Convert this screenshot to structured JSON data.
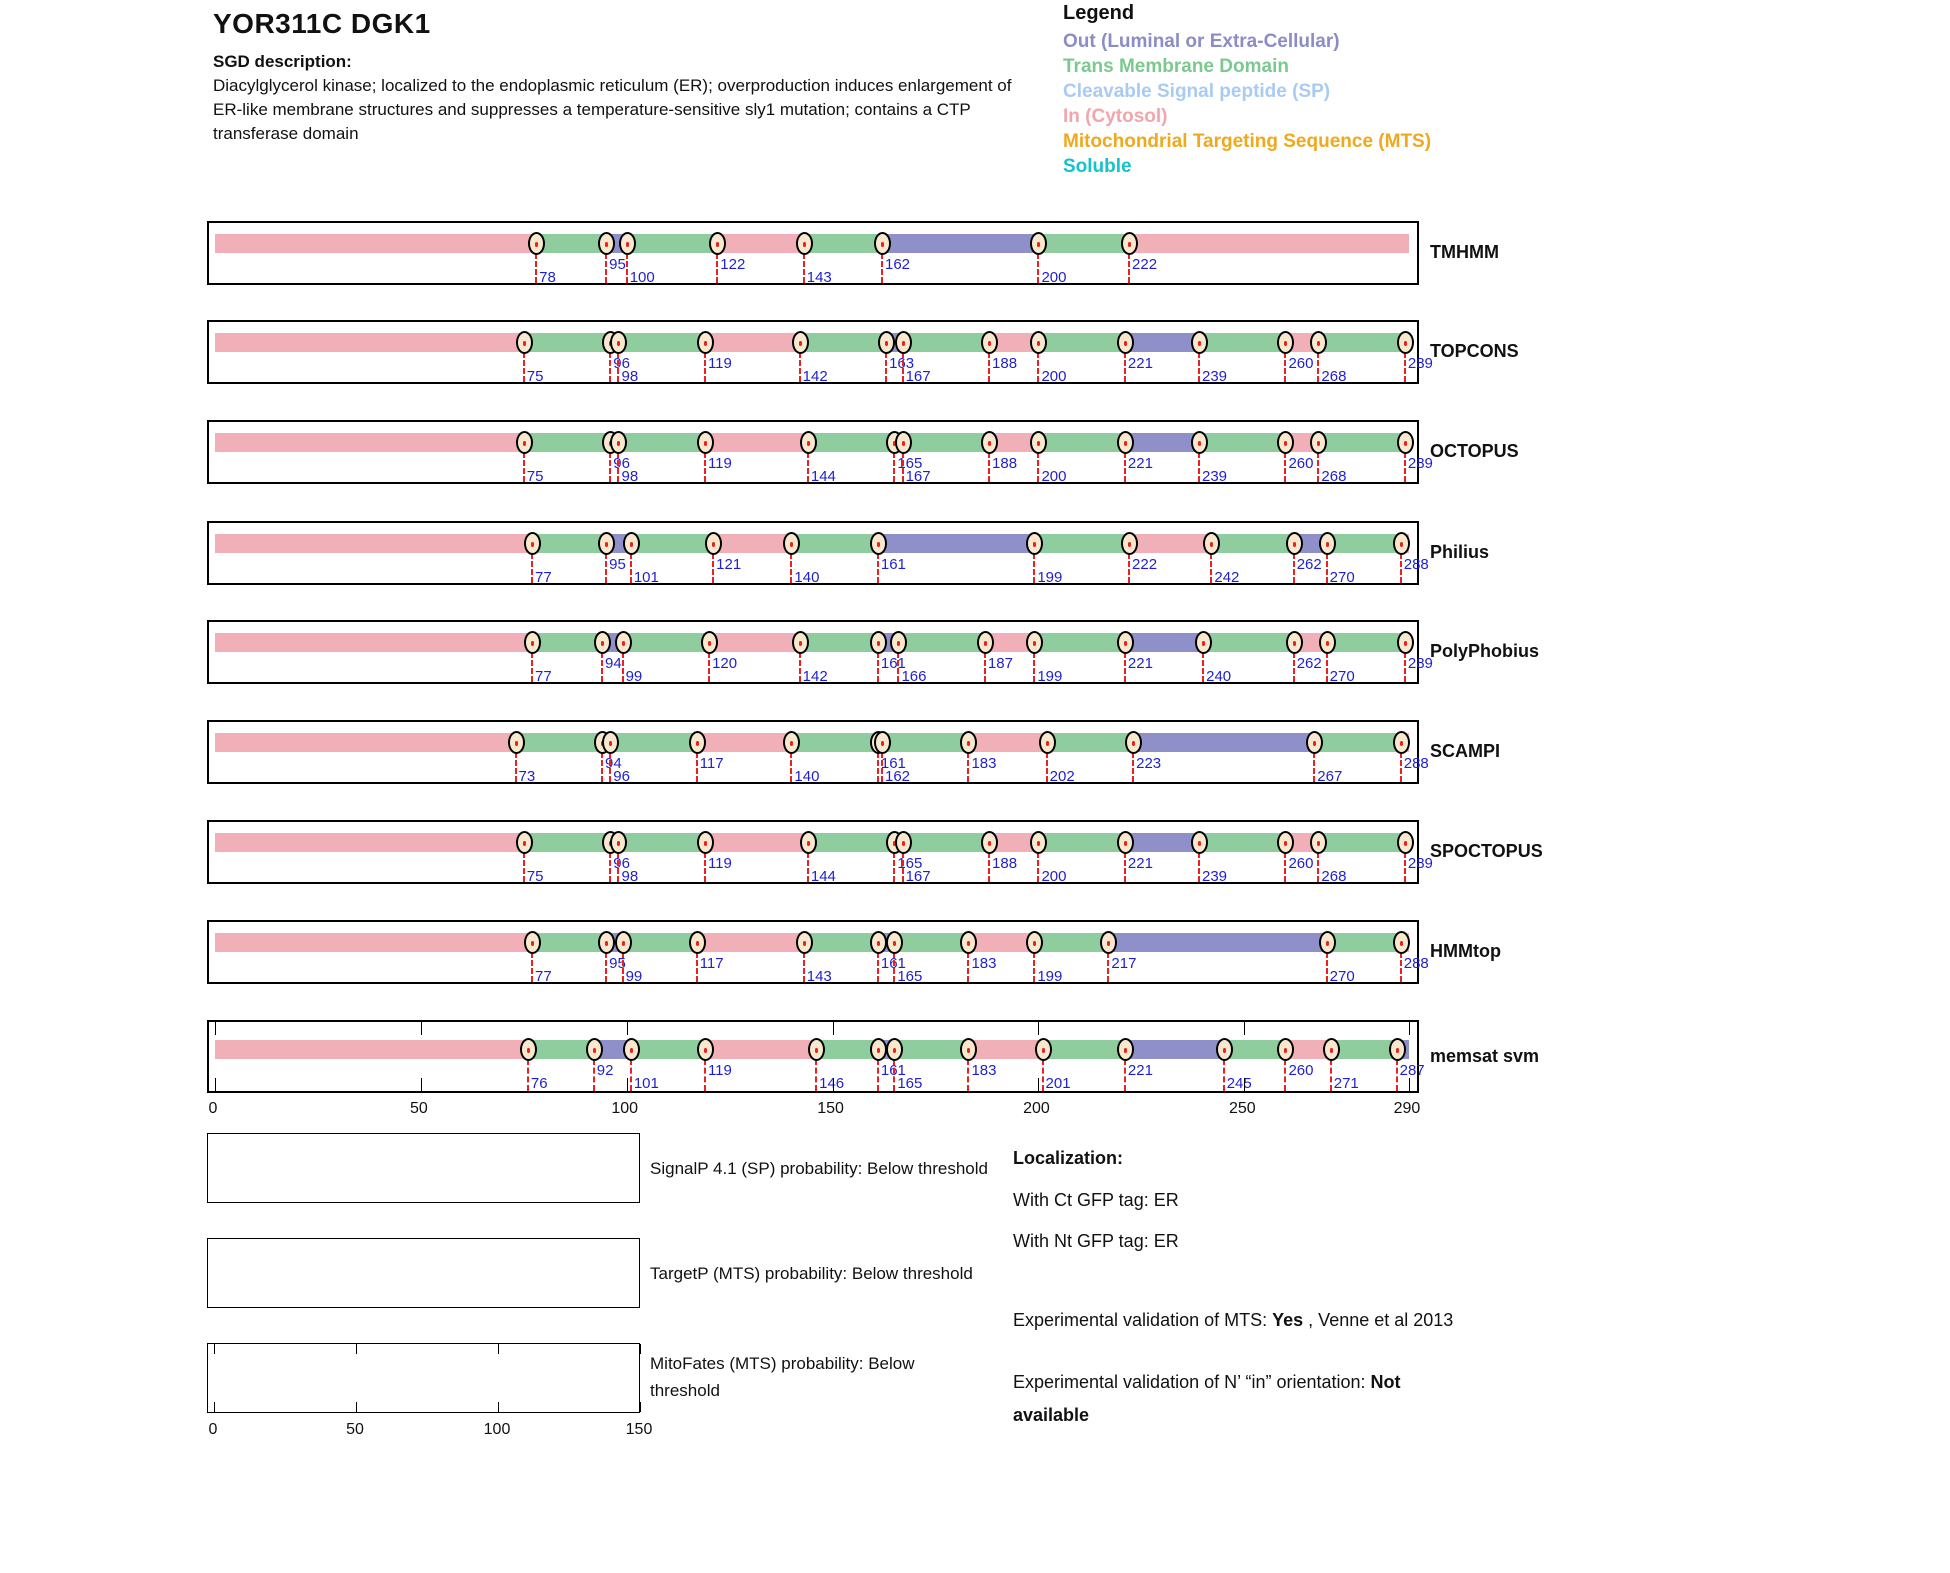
{
  "title": "YOR311C  DGK1",
  "sgd": {
    "label": "SGD description:",
    "lines": [
      "Diacylglycerol kinase; localized to the endoplasmic reticulum (ER); overproduction induces enlargement of",
      "ER-like membrane structures and suppresses a temperature-sensitive sly1 mutation; contains a CTP",
      "transferase domain"
    ]
  },
  "legend": {
    "title": "Legend",
    "items": [
      {
        "label": "Out (Luminal or Extra-Cellular)",
        "color": "#8C8CC6"
      },
      {
        "label": "Trans Membrane Domain",
        "color": "#7CC98F"
      },
      {
        "label": "Cleavable Signal peptide (SP)",
        "color": "#A9CBF2"
      },
      {
        "label": "In (Cytosol)",
        "color": "#F2A6AB"
      },
      {
        "label": "Mitochondrial Targeting Sequence (MTS)",
        "color": "#F0A81C"
      },
      {
        "label": "Soluble",
        "color": "#14C3CB"
      }
    ]
  },
  "colors": {
    "in": "#F1B0B7",
    "tm": "#8FCD9F",
    "out": "#8F90C9",
    "marker_fill": "#F8E9CE",
    "dash_red": "#E82222",
    "number_blue": "#1F1FD0"
  },
  "chart_data": {
    "type": "topology-tracks",
    "residue_range": [
      1,
      290
    ],
    "axis_ticks": [
      0,
      50,
      100,
      150,
      200,
      250,
      290
    ],
    "segment_types": {
      "in": "In (Cytosol)",
      "tm": "Trans Membrane Domain",
      "out": "Out (Luminal or Extra-Cellular)"
    },
    "tracks": [
      {
        "name": "TMHMM",
        "markers": [
          78,
          95,
          100,
          122,
          143,
          162,
          200,
          222
        ],
        "segments": [
          {
            "s": 0,
            "e": 78,
            "t": "in"
          },
          {
            "s": 78,
            "e": 95,
            "t": "tm"
          },
          {
            "s": 95,
            "e": 100,
            "t": "out"
          },
          {
            "s": 100,
            "e": 122,
            "t": "tm"
          },
          {
            "s": 122,
            "e": 143,
            "t": "in"
          },
          {
            "s": 143,
            "e": 162,
            "t": "tm"
          },
          {
            "s": 162,
            "e": 200,
            "t": "out"
          },
          {
            "s": 200,
            "e": 222,
            "t": "tm"
          },
          {
            "s": 222,
            "e": 290,
            "t": "in"
          }
        ]
      },
      {
        "name": "TOPCONS",
        "markers": [
          75,
          96,
          98,
          119,
          142,
          163,
          167,
          188,
          200,
          221,
          239,
          260,
          268,
          289
        ],
        "segments": [
          {
            "s": 0,
            "e": 75,
            "t": "in"
          },
          {
            "s": 75,
            "e": 96,
            "t": "tm"
          },
          {
            "s": 96,
            "e": 98,
            "t": "out"
          },
          {
            "s": 98,
            "e": 119,
            "t": "tm"
          },
          {
            "s": 119,
            "e": 142,
            "t": "in"
          },
          {
            "s": 142,
            "e": 163,
            "t": "tm"
          },
          {
            "s": 163,
            "e": 167,
            "t": "out"
          },
          {
            "s": 167,
            "e": 188,
            "t": "tm"
          },
          {
            "s": 188,
            "e": 200,
            "t": "in"
          },
          {
            "s": 200,
            "e": 221,
            "t": "tm"
          },
          {
            "s": 221,
            "e": 239,
            "t": "out"
          },
          {
            "s": 239,
            "e": 260,
            "t": "tm"
          },
          {
            "s": 260,
            "e": 268,
            "t": "in"
          },
          {
            "s": 268,
            "e": 289,
            "t": "tm"
          },
          {
            "s": 289,
            "e": 290,
            "t": "out"
          }
        ]
      },
      {
        "name": "OCTOPUS",
        "markers": [
          75,
          96,
          98,
          119,
          144,
          165,
          167,
          188,
          200,
          221,
          239,
          260,
          268,
          289
        ],
        "segments": [
          {
            "s": 0,
            "e": 75,
            "t": "in"
          },
          {
            "s": 75,
            "e": 96,
            "t": "tm"
          },
          {
            "s": 96,
            "e": 98,
            "t": "out"
          },
          {
            "s": 98,
            "e": 119,
            "t": "tm"
          },
          {
            "s": 119,
            "e": 144,
            "t": "in"
          },
          {
            "s": 144,
            "e": 165,
            "t": "tm"
          },
          {
            "s": 165,
            "e": 167,
            "t": "out"
          },
          {
            "s": 167,
            "e": 188,
            "t": "tm"
          },
          {
            "s": 188,
            "e": 200,
            "t": "in"
          },
          {
            "s": 200,
            "e": 221,
            "t": "tm"
          },
          {
            "s": 221,
            "e": 239,
            "t": "out"
          },
          {
            "s": 239,
            "e": 260,
            "t": "tm"
          },
          {
            "s": 260,
            "e": 268,
            "t": "in"
          },
          {
            "s": 268,
            "e": 289,
            "t": "tm"
          },
          {
            "s": 289,
            "e": 290,
            "t": "out"
          }
        ]
      },
      {
        "name": "Philius",
        "markers": [
          77,
          95,
          101,
          121,
          140,
          161,
          199,
          222,
          242,
          262,
          270,
          288
        ],
        "segments": [
          {
            "s": 0,
            "e": 77,
            "t": "in"
          },
          {
            "s": 77,
            "e": 95,
            "t": "tm"
          },
          {
            "s": 95,
            "e": 101,
            "t": "out"
          },
          {
            "s": 101,
            "e": 121,
            "t": "tm"
          },
          {
            "s": 121,
            "e": 140,
            "t": "in"
          },
          {
            "s": 140,
            "e": 161,
            "t": "tm"
          },
          {
            "s": 161,
            "e": 199,
            "t": "out"
          },
          {
            "s": 199,
            "e": 222,
            "t": "tm"
          },
          {
            "s": 222,
            "e": 242,
            "t": "in"
          },
          {
            "s": 242,
            "e": 262,
            "t": "tm"
          },
          {
            "s": 262,
            "e": 270,
            "t": "out"
          },
          {
            "s": 270,
            "e": 288,
            "t": "tm"
          },
          {
            "s": 288,
            "e": 290,
            "t": "in"
          }
        ]
      },
      {
        "name": "PolyPhobius",
        "markers": [
          77,
          94,
          99,
          120,
          142,
          161,
          166,
          187,
          199,
          221,
          240,
          262,
          270,
          289
        ],
        "segments": [
          {
            "s": 0,
            "e": 77,
            "t": "in"
          },
          {
            "s": 77,
            "e": 94,
            "t": "tm"
          },
          {
            "s": 94,
            "e": 99,
            "t": "out"
          },
          {
            "s": 99,
            "e": 120,
            "t": "tm"
          },
          {
            "s": 120,
            "e": 142,
            "t": "in"
          },
          {
            "s": 142,
            "e": 161,
            "t": "tm"
          },
          {
            "s": 161,
            "e": 166,
            "t": "out"
          },
          {
            "s": 166,
            "e": 187,
            "t": "tm"
          },
          {
            "s": 187,
            "e": 199,
            "t": "in"
          },
          {
            "s": 199,
            "e": 221,
            "t": "tm"
          },
          {
            "s": 221,
            "e": 240,
            "t": "out"
          },
          {
            "s": 240,
            "e": 262,
            "t": "tm"
          },
          {
            "s": 262,
            "e": 270,
            "t": "in"
          },
          {
            "s": 270,
            "e": 289,
            "t": "tm"
          },
          {
            "s": 289,
            "e": 290,
            "t": "out"
          }
        ]
      },
      {
        "name": "SCAMPI",
        "markers": [
          73,
          94,
          96,
          117,
          140,
          161,
          162,
          183,
          202,
          223,
          267,
          288
        ],
        "segments": [
          {
            "s": 0,
            "e": 73,
            "t": "in"
          },
          {
            "s": 73,
            "e": 94,
            "t": "tm"
          },
          {
            "s": 94,
            "e": 96,
            "t": "out"
          },
          {
            "s": 96,
            "e": 117,
            "t": "tm"
          },
          {
            "s": 117,
            "e": 140,
            "t": "in"
          },
          {
            "s": 140,
            "e": 161,
            "t": "tm"
          },
          {
            "s": 161,
            "e": 162,
            "t": "out"
          },
          {
            "s": 162,
            "e": 183,
            "t": "tm"
          },
          {
            "s": 183,
            "e": 202,
            "t": "in"
          },
          {
            "s": 202,
            "e": 223,
            "t": "tm"
          },
          {
            "s": 223,
            "e": 267,
            "t": "out"
          },
          {
            "s": 267,
            "e": 288,
            "t": "tm"
          },
          {
            "s": 288,
            "e": 290,
            "t": "in"
          }
        ]
      },
      {
        "name": "SPOCTOPUS",
        "markers": [
          75,
          96,
          98,
          119,
          144,
          165,
          167,
          188,
          200,
          221,
          239,
          260,
          268,
          289
        ],
        "segments": [
          {
            "s": 0,
            "e": 75,
            "t": "in"
          },
          {
            "s": 75,
            "e": 96,
            "t": "tm"
          },
          {
            "s": 96,
            "e": 98,
            "t": "out"
          },
          {
            "s": 98,
            "e": 119,
            "t": "tm"
          },
          {
            "s": 119,
            "e": 144,
            "t": "in"
          },
          {
            "s": 144,
            "e": 165,
            "t": "tm"
          },
          {
            "s": 165,
            "e": 167,
            "t": "out"
          },
          {
            "s": 167,
            "e": 188,
            "t": "tm"
          },
          {
            "s": 188,
            "e": 200,
            "t": "in"
          },
          {
            "s": 200,
            "e": 221,
            "t": "tm"
          },
          {
            "s": 221,
            "e": 239,
            "t": "out"
          },
          {
            "s": 239,
            "e": 260,
            "t": "tm"
          },
          {
            "s": 260,
            "e": 268,
            "t": "in"
          },
          {
            "s": 268,
            "e": 289,
            "t": "tm"
          },
          {
            "s": 289,
            "e": 290,
            "t": "out"
          }
        ]
      },
      {
        "name": "HMMtop",
        "markers": [
          77,
          95,
          99,
          117,
          143,
          161,
          165,
          183,
          199,
          217,
          270,
          288
        ],
        "segments": [
          {
            "s": 0,
            "e": 77,
            "t": "in"
          },
          {
            "s": 77,
            "e": 95,
            "t": "tm"
          },
          {
            "s": 95,
            "e": 99,
            "t": "out"
          },
          {
            "s": 99,
            "e": 117,
            "t": "tm"
          },
          {
            "s": 117,
            "e": 143,
            "t": "in"
          },
          {
            "s": 143,
            "e": 161,
            "t": "tm"
          },
          {
            "s": 161,
            "e": 165,
            "t": "out"
          },
          {
            "s": 165,
            "e": 183,
            "t": "tm"
          },
          {
            "s": 183,
            "e": 199,
            "t": "in"
          },
          {
            "s": 199,
            "e": 217,
            "t": "tm"
          },
          {
            "s": 217,
            "e": 270,
            "t": "out"
          },
          {
            "s": 270,
            "e": 288,
            "t": "tm"
          },
          {
            "s": 288,
            "e": 290,
            "t": "in"
          }
        ]
      },
      {
        "name": "memsat svm",
        "markers": [
          76,
          92,
          101,
          119,
          146,
          161,
          165,
          183,
          201,
          221,
          245,
          260,
          271,
          287
        ],
        "segments": [
          {
            "s": 0,
            "e": 76,
            "t": "in"
          },
          {
            "s": 76,
            "e": 92,
            "t": "tm"
          },
          {
            "s": 92,
            "e": 101,
            "t": "out"
          },
          {
            "s": 101,
            "e": 119,
            "t": "tm"
          },
          {
            "s": 119,
            "e": 146,
            "t": "in"
          },
          {
            "s": 146,
            "e": 161,
            "t": "tm"
          },
          {
            "s": 161,
            "e": 165,
            "t": "out"
          },
          {
            "s": 165,
            "e": 183,
            "t": "tm"
          },
          {
            "s": 183,
            "e": 201,
            "t": "in"
          },
          {
            "s": 201,
            "e": 221,
            "t": "tm"
          },
          {
            "s": 221,
            "e": 245,
            "t": "out"
          },
          {
            "s": 245,
            "e": 260,
            "t": "tm"
          },
          {
            "s": 260,
            "e": 271,
            "t": "in"
          },
          {
            "s": 271,
            "e": 287,
            "t": "tm"
          },
          {
            "s": 287,
            "e": 290,
            "t": "out"
          }
        ]
      }
    ]
  },
  "plots": [
    {
      "caption": "SignalP 4.1 (SP) probability: Below threshold"
    },
    {
      "caption": "TargetP (MTS) probability: Below threshold"
    },
    {
      "caption": "MitoFates (MTS) probability: Below threshold",
      "axis_ticks": [
        0,
        50,
        100,
        150
      ],
      "axis_range": [
        0,
        150
      ]
    }
  ],
  "info": {
    "localization_title": "Localization:",
    "with_ct": "With Ct GFP tag: ER",
    "with_nt": "With Nt GFP tag: ER",
    "mts_prefix": "Experimental validation of MTS: ",
    "mts_bold": "Yes",
    "mts_suffix": " , Venne et al 2013",
    "orientation_prefix": "Experimental validation of N’ “in” orientation: ",
    "orientation_bold": "Not available"
  }
}
